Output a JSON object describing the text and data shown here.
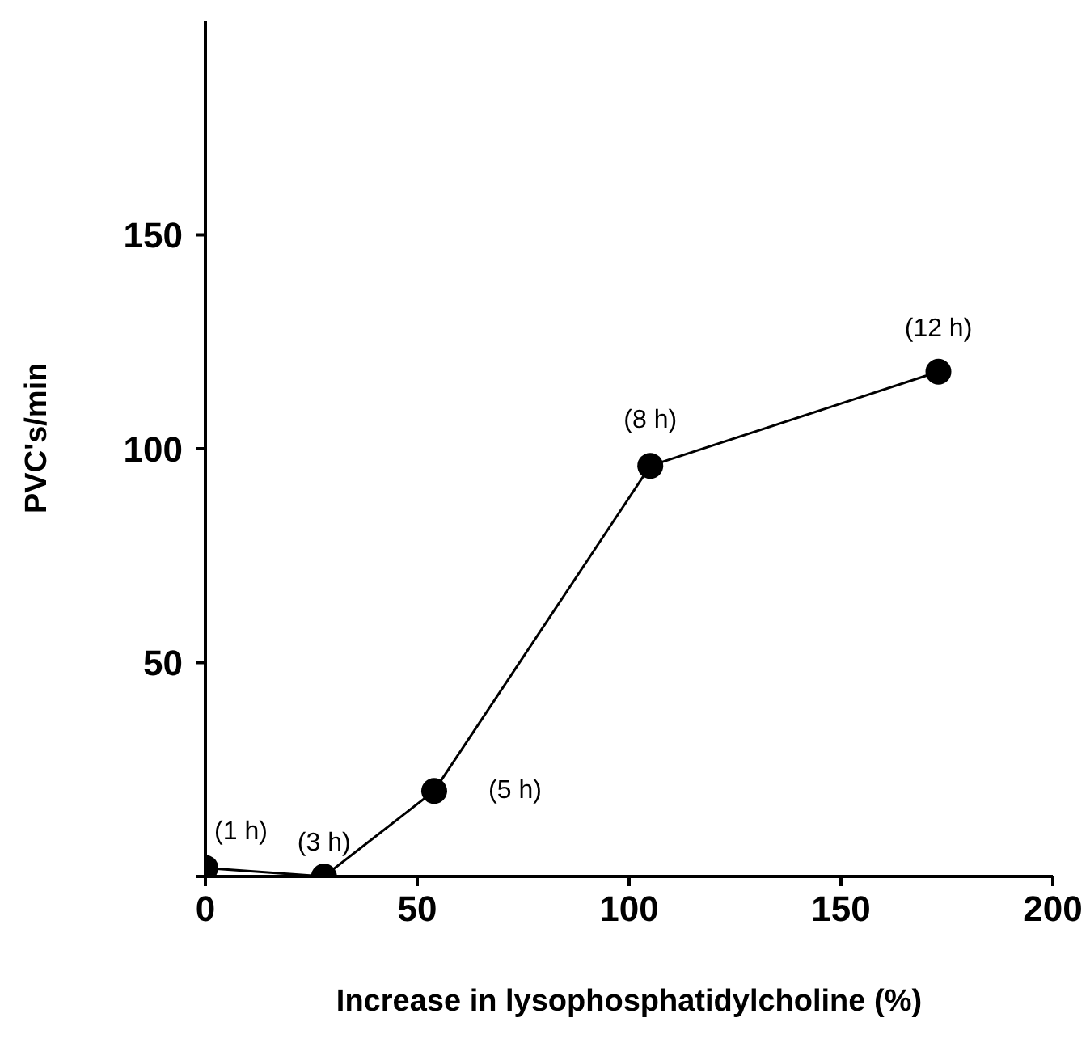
{
  "chart_data": {
    "type": "line",
    "xlabel": "Increase in lysophosphatidylcholine (%)",
    "ylabel": "PVC's/min",
    "x": [
      0,
      28,
      54,
      105,
      173
    ],
    "series": [
      {
        "color": "#000000",
        "values": [
          2,
          0,
          20,
          96,
          118
        ]
      }
    ],
    "xlim": [
      0,
      200
    ],
    "xticks": [
      0,
      50,
      100,
      150,
      200
    ],
    "ylim": [
      0,
      200
    ],
    "yticks": [
      {
        "value": 0,
        "label": null
      },
      50,
      100,
      150
    ],
    "marker": "circle",
    "line_style": "solid",
    "grid": false,
    "legend": false,
    "annotations": [
      {
        "text": "(1 h)",
        "x": 0,
        "y": 2
      },
      {
        "text": "(3 h)",
        "x": 28,
        "y": 0
      },
      {
        "text": "(5 h)",
        "x": 54,
        "y": 20
      },
      {
        "text": "(8 h)",
        "x": 105,
        "y": 96
      },
      {
        "text": "(12 h)",
        "x": 173,
        "y": 118
      }
    ]
  }
}
